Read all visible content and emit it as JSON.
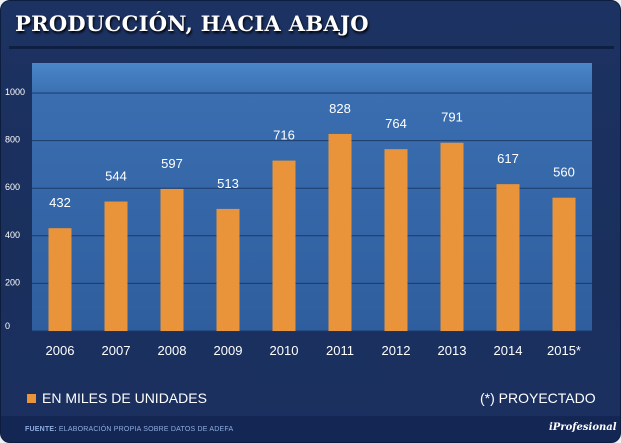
{
  "header": {
    "title": "PRODUCCIÓN, HACIA ABAJO"
  },
  "colors": {
    "bar": "#e9943a",
    "panel": "#3e77ba",
    "background": "#1c3262"
  },
  "chart_data": {
    "type": "bar",
    "title": "PRODUCCIÓN, HACIA ABAJO",
    "categories": [
      "2006",
      "2007",
      "2008",
      "2009",
      "2010",
      "2011",
      "2012",
      "2013",
      "2014",
      "2015*"
    ],
    "values": [
      432,
      544,
      597,
      513,
      716,
      828,
      764,
      791,
      617,
      560
    ],
    "ylim": [
      0,
      1000
    ],
    "yticks": [
      0,
      200,
      400,
      600,
      800,
      1000
    ],
    "grid": true,
    "xlabel": "",
    "ylabel": ""
  },
  "legend": {
    "series_label": "EN MILES DE UNIDADES",
    "note": "(*) PROYECTADO"
  },
  "footer": {
    "source_label": "FUENTE:",
    "source_text": "ELABORACIÓN PROPIA SOBRE DATOS DE ADEFA",
    "brand": "iProfesional"
  }
}
